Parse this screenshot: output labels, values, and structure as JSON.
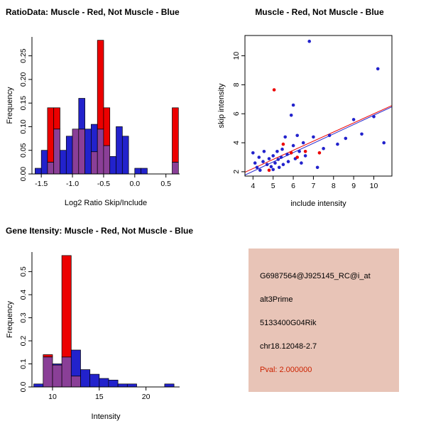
{
  "colors": {
    "red": "#ec0000",
    "blue": "#2222cc",
    "overlap": "#8a3f97",
    "axis": "#000000"
  },
  "chart_data": [
    {
      "type": "bar",
      "variant": "overlaid-histogram",
      "title": "RatioData: Muscle - Red, Not Muscle - Blue",
      "xlabel": "Log2 Ratio Skip/Include",
      "ylabel": "Frequency",
      "xlim": [
        -1.65,
        0.72
      ],
      "ylim": [
        0,
        0.29
      ],
      "xticks": [
        -1.5,
        -1.0,
        -0.5,
        0.0,
        0.5
      ],
      "xtick_labels": [
        "-1.5",
        "-1.0",
        "-0.5",
        "0.0",
        "0.5"
      ],
      "yticks": [
        0.0,
        0.05,
        0.1,
        0.15,
        0.2,
        0.25
      ],
      "ytick_labels": [
        "0.00",
        "0.05",
        "0.10",
        "0.15",
        "0.20",
        "0.25"
      ],
      "bin_width": 0.1,
      "bin_centers": [
        -1.55,
        -1.45,
        -1.35,
        -1.25,
        -1.15,
        -1.05,
        -0.95,
        -0.85,
        -0.75,
        -0.65,
        -0.55,
        -0.45,
        -0.35,
        -0.25,
        -0.15,
        -0.05,
        0.05,
        0.15,
        0.25,
        0.35,
        0.45,
        0.55,
        0.65
      ],
      "series": [
        {
          "name": "Not Muscle",
          "color_key": "blue",
          "values": [
            0.012,
            0.05,
            0.025,
            0.095,
            0.05,
            0.08,
            0.095,
            0.16,
            0.095,
            0.105,
            0.095,
            0.06,
            0.037,
            0.1,
            0.08,
            0,
            0.012,
            0.012,
            0,
            0,
            0,
            0,
            0.025
          ]
        },
        {
          "name": "Muscle",
          "color_key": "red",
          "values": [
            0,
            0,
            0.14,
            0.14,
            0,
            0,
            0.095,
            0.095,
            0,
            0.047,
            0.283,
            0.14,
            0,
            0,
            0,
            0,
            0,
            0,
            0,
            0,
            0,
            0,
            0.14
          ]
        }
      ]
    },
    {
      "type": "scatter",
      "title": "Muscle - Red, Not Muscle - Blue",
      "xlabel": "include intensity",
      "ylabel": "skip intensity",
      "xlim": [
        3.6,
        10.9
      ],
      "ylim": [
        1.7,
        11.4
      ],
      "xticks": [
        4,
        5,
        6,
        7,
        8,
        9,
        10
      ],
      "xtick_labels": [
        "4",
        "5",
        "6",
        "7",
        "8",
        "9",
        "10"
      ],
      "yticks": [
        2,
        4,
        6,
        8,
        10
      ],
      "ytick_labels": [
        "2",
        "4",
        "6",
        "8",
        "10"
      ],
      "frame": true,
      "point_radius": 2.3,
      "series": [
        {
          "name": "Not Muscle",
          "color_key": "blue",
          "points": [
            [
              4.0,
              3.3
            ],
            [
              4.1,
              2.6
            ],
            [
              4.2,
              2.3
            ],
            [
              4.3,
              3.0
            ],
            [
              4.35,
              2.1
            ],
            [
              4.5,
              2.7
            ],
            [
              4.55,
              3.4
            ],
            [
              4.7,
              2.5
            ],
            [
              4.8,
              2.9
            ],
            [
              4.9,
              2.35
            ],
            [
              5.0,
              3.1
            ],
            [
              5.0,
              2.15
            ],
            [
              5.1,
              2.6
            ],
            [
              5.2,
              3.4
            ],
            [
              5.25,
              2.85
            ],
            [
              5.3,
              2.3
            ],
            [
              5.4,
              3.0
            ],
            [
              5.45,
              3.55
            ],
            [
              5.5,
              2.5
            ],
            [
              5.6,
              4.4
            ],
            [
              5.7,
              3.2
            ],
            [
              5.75,
              2.7
            ],
            [
              5.9,
              5.9
            ],
            [
              6.0,
              6.6
            ],
            [
              6.0,
              3.8
            ],
            [
              6.1,
              2.9
            ],
            [
              6.2,
              4.5
            ],
            [
              6.3,
              3.4
            ],
            [
              6.4,
              2.6
            ],
            [
              6.5,
              4.0
            ],
            [
              6.6,
              3.1
            ],
            [
              6.8,
              11.0
            ],
            [
              7.0,
              4.4
            ],
            [
              7.2,
              2.3
            ],
            [
              7.5,
              3.6
            ],
            [
              7.8,
              4.5
            ],
            [
              8.2,
              3.9
            ],
            [
              8.6,
              4.3
            ],
            [
              9.0,
              5.6
            ],
            [
              9.4,
              4.6
            ],
            [
              10.0,
              5.8
            ],
            [
              10.2,
              9.1
            ],
            [
              10.5,
              4.0
            ]
          ]
        },
        {
          "name": "Muscle",
          "color_key": "red",
          "points": [
            [
              5.05,
              7.65
            ],
            [
              4.8,
              2.1
            ],
            [
              5.5,
              3.9
            ],
            [
              5.9,
              3.3
            ],
            [
              6.2,
              3.0
            ],
            [
              6.6,
              3.4
            ],
            [
              7.3,
              3.3
            ]
          ]
        }
      ],
      "lines": [
        {
          "name": "muscle-fit",
          "color_key": "red",
          "slope": 0.63,
          "intercept": -0.3
        },
        {
          "name": "not-muscle-fit",
          "color_key": "blue",
          "slope": 0.645,
          "intercept": -0.55
        }
      ]
    },
    {
      "type": "bar",
      "variant": "overlaid-histogram",
      "title": "Gene Itensity: Muscle - Red, Not Muscle - Blue",
      "xlabel": "Intensity",
      "ylabel": "Frequency",
      "xlim": [
        7.8,
        23.6
      ],
      "ylim": [
        0,
        0.585
      ],
      "xticks": [
        10,
        15,
        20
      ],
      "xtick_labels": [
        "10",
        "15",
        "20"
      ],
      "yticks": [
        0.0,
        0.1,
        0.2,
        0.3,
        0.4,
        0.5
      ],
      "ytick_labels": [
        "0.0",
        "0.1",
        "0.2",
        "0.3",
        "0.4",
        "0.5"
      ],
      "bin_width": 1,
      "bin_centers": [
        8.5,
        9.5,
        10.5,
        11.5,
        12.5,
        13.5,
        14.5,
        15.5,
        16.5,
        17.5,
        18.5,
        19.5,
        20.5,
        21.5,
        22.5
      ],
      "series": [
        {
          "name": "Not Muscle",
          "color_key": "blue",
          "values": [
            0.013,
            0.13,
            0.1,
            0.13,
            0.16,
            0.075,
            0.055,
            0.037,
            0.03,
            0.013,
            0.013,
            0,
            0,
            0,
            0.013
          ]
        },
        {
          "name": "Muscle",
          "color_key": "red",
          "values": [
            0,
            0.14,
            0.095,
            0.57,
            0.047,
            0,
            0,
            0,
            0,
            0,
            0,
            0,
            0,
            0,
            0
          ]
        }
      ]
    }
  ],
  "info_box": {
    "bg": "#e8c4b7",
    "lines": [
      "G6987564@J925145_RC@i_at",
      "alt3Prime",
      "5133400G04Rik",
      "chr18.12048-2.7"
    ],
    "pval": "Pval: 2.000000",
    "pval_color": "#cc2200"
  }
}
